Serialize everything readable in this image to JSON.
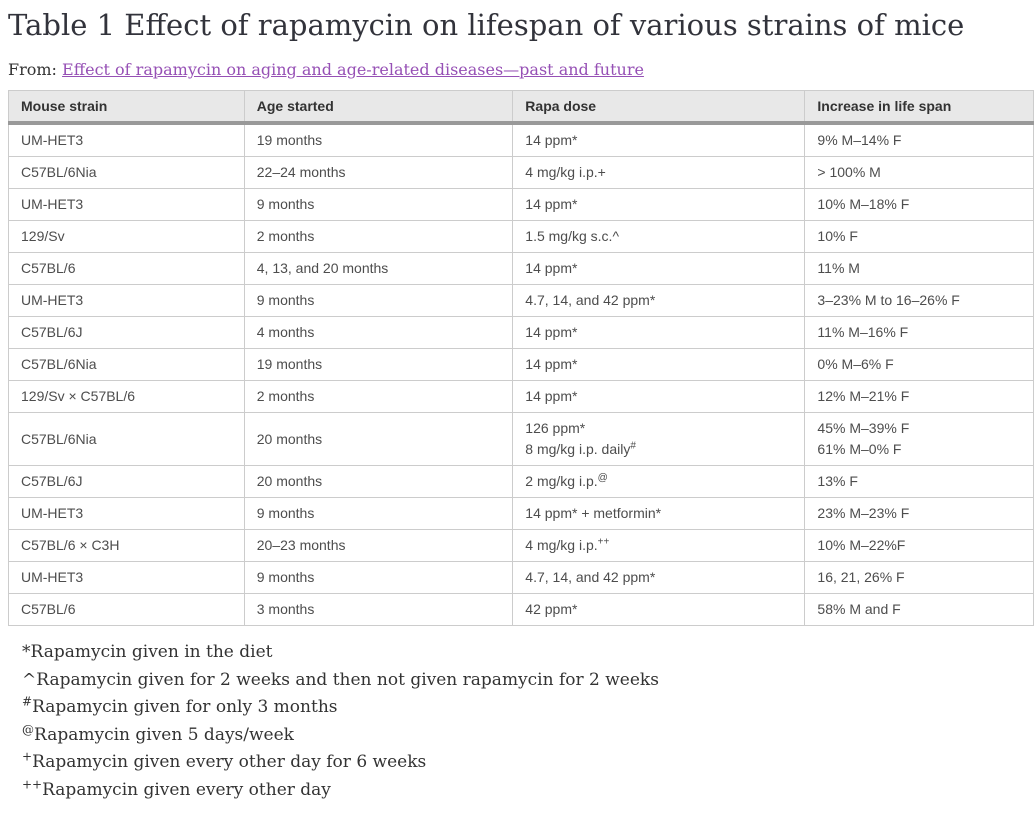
{
  "page": {
    "title": "Table 1 Effect of rapamycin on lifespan of various strains of mice",
    "from_label": "From:",
    "source_link": "Effect of rapamycin on aging and age-related diseases—past and future"
  },
  "colors": {
    "link": "#9650b5",
    "header_bg": "#e8e8e8",
    "header_bottom_border": "#999999",
    "cell_border": "#cccccc",
    "body_text": "#4d4d4d"
  },
  "table": {
    "headers": [
      "Mouse strain",
      "Age started",
      "Rapa dose",
      "Increase in life span"
    ],
    "rows": [
      {
        "strain": "UM-HET3",
        "age": "19 months",
        "dose": [
          {
            "text": "14 ppm*",
            "sup": ""
          }
        ],
        "lifespan": [
          "9% M–14% F"
        ]
      },
      {
        "strain": "C57BL/6Nia",
        "age": "22–24 months",
        "dose": [
          {
            "text": "4 mg/kg i.p.+",
            "sup": ""
          }
        ],
        "lifespan": [
          "> 100% M"
        ]
      },
      {
        "strain": "UM-HET3",
        "age": "9 months",
        "dose": [
          {
            "text": "14 ppm*",
            "sup": ""
          }
        ],
        "lifespan": [
          "10% M–18% F"
        ]
      },
      {
        "strain": "129/Sv",
        "age": "2 months",
        "dose": [
          {
            "text": "1.5 mg/kg s.c.^",
            "sup": ""
          }
        ],
        "lifespan": [
          "10% F"
        ]
      },
      {
        "strain": "C57BL/6",
        "age": "4, 13, and 20 months",
        "dose": [
          {
            "text": "14 ppm*",
            "sup": ""
          }
        ],
        "lifespan": [
          "11% M"
        ]
      },
      {
        "strain": "UM-HET3",
        "age": "9 months",
        "dose": [
          {
            "text": "4.7, 14, and 42 ppm*",
            "sup": ""
          }
        ],
        "lifespan": [
          "3–23% M to 16–26% F"
        ]
      },
      {
        "strain": "C57BL/6J",
        "age": "4 months",
        "dose": [
          {
            "text": "14 ppm*",
            "sup": ""
          }
        ],
        "lifespan": [
          "11% M–16% F"
        ]
      },
      {
        "strain": "C57BL/6Nia",
        "age": "19 months",
        "dose": [
          {
            "text": "14 ppm*",
            "sup": ""
          }
        ],
        "lifespan": [
          "0% M–6% F"
        ]
      },
      {
        "strain": "129/Sv × C57BL/6",
        "age": "2 months",
        "dose": [
          {
            "text": "14 ppm*",
            "sup": ""
          }
        ],
        "lifespan": [
          "12% M–21% F"
        ]
      },
      {
        "strain": "C57BL/6Nia",
        "age": "20 months",
        "dose": [
          {
            "text": "126 ppm*",
            "sup": ""
          },
          {
            "text": "8 mg/kg i.p. daily",
            "sup": "#"
          }
        ],
        "lifespan": [
          "45% M–39% F",
          "61% M–0% F"
        ]
      },
      {
        "strain": "C57BL/6J",
        "age": "20 months",
        "dose": [
          {
            "text": "2 mg/kg i.p.",
            "sup": "@"
          }
        ],
        "lifespan": [
          "13% F"
        ]
      },
      {
        "strain": "UM-HET3",
        "age": "9 months",
        "dose": [
          {
            "text": "14 ppm* + metformin*",
            "sup": ""
          }
        ],
        "lifespan": [
          "23% M–23% F"
        ]
      },
      {
        "strain": "C57BL/6 × C3H",
        "age": "20–23 months",
        "dose": [
          {
            "text": "4 mg/kg i.p.",
            "sup": "++"
          }
        ],
        "lifespan": [
          "10% M–22%F"
        ]
      },
      {
        "strain": "UM-HET3",
        "age": "9 months",
        "dose": [
          {
            "text": "4.7, 14, and 42 ppm*",
            "sup": ""
          }
        ],
        "lifespan": [
          "16, 21, 26% F"
        ]
      },
      {
        "strain": "C57BL/6",
        "age": "3 months",
        "dose": [
          {
            "text": "42 ppm*",
            "sup": ""
          }
        ],
        "lifespan": [
          "58% M and F"
        ]
      }
    ]
  },
  "footnotes": [
    {
      "marker": "*",
      "superscript": false,
      "text": "Rapamycin given in the diet"
    },
    {
      "marker": "^",
      "superscript": false,
      "text": "Rapamycin given for 2 weeks and then not given rapamycin for 2 weeks"
    },
    {
      "marker": "#",
      "superscript": true,
      "text": "Rapamycin given for only 3 months"
    },
    {
      "marker": "@",
      "superscript": true,
      "text": "Rapamycin given 5 days/week"
    },
    {
      "marker": "+",
      "superscript": true,
      "text": "Rapamycin given every other day for 6 weeks"
    },
    {
      "marker": "++",
      "superscript": true,
      "text": "Rapamycin given every other day"
    }
  ]
}
